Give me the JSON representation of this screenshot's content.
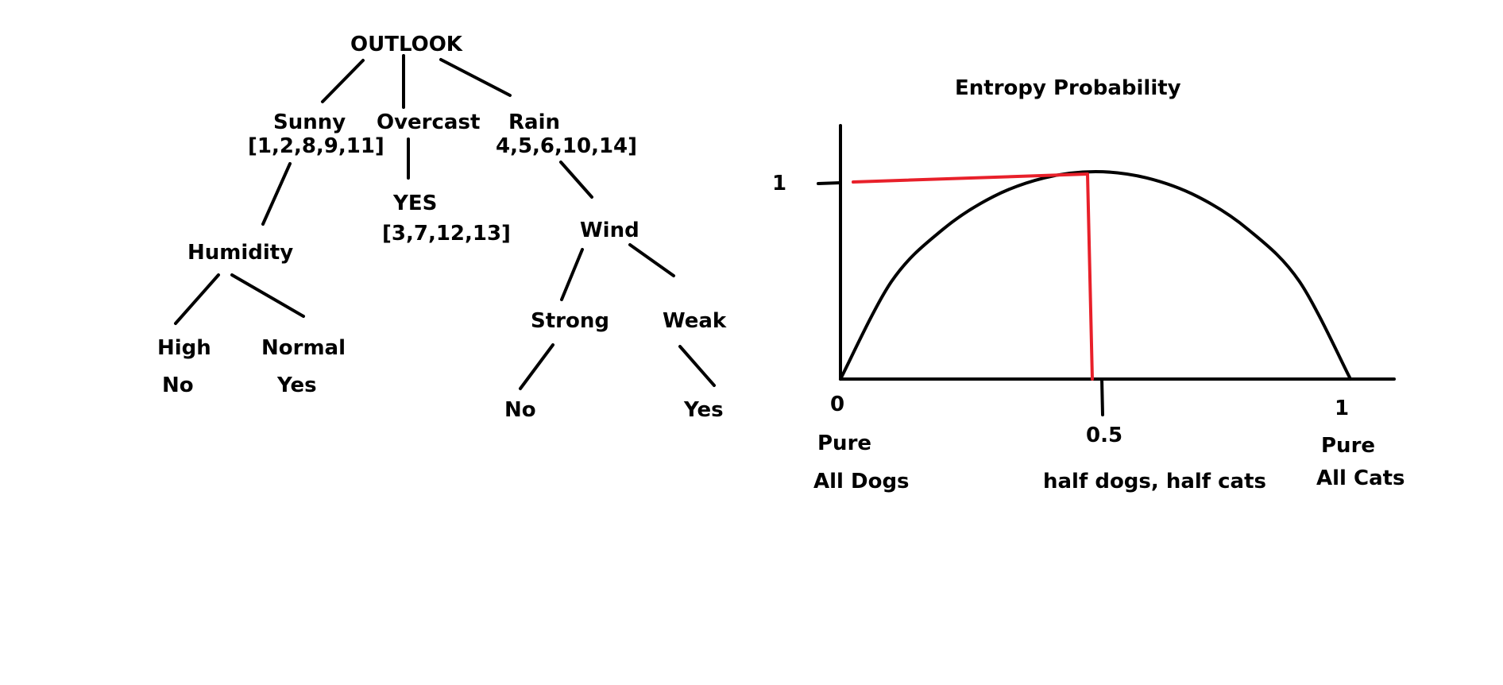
{
  "tree": {
    "root": "OUTLOOK",
    "sunny": {
      "label": "Sunny",
      "ids": "[1,2,8,9,11]"
    },
    "overcast": {
      "label": "Overcast",
      "result": "YES",
      "ids": "[3,7,12,13]"
    },
    "rain": {
      "label": "Rain",
      "ids": "4,5,6,10,14]"
    },
    "humidity": {
      "label": "Humidity",
      "high": {
        "label": "High",
        "result": "No"
      },
      "normal": {
        "label": "Normal",
        "result": "Yes"
      }
    },
    "wind": {
      "label": "Wind",
      "strong": {
        "label": "Strong",
        "result": "No"
      },
      "weak": {
        "label": "Weak",
        "result": "Yes"
      }
    }
  },
  "entropy_chart": {
    "title": "Entropy Probability",
    "y_tick": "1",
    "x_ticks": {
      "zero": "0",
      "half": "0.5",
      "one": "1"
    },
    "x_notes": {
      "left_line1": "Pure",
      "left_line2": "All Dogs",
      "middle": "half dogs, half cats",
      "right_line1": "Pure",
      "right_line2": "All Cats"
    },
    "curve_color": "#000000",
    "guide_color": "#e8202a"
  },
  "chart_data": {
    "type": "line",
    "title": "Entropy Probability",
    "xlabel": "",
    "ylabel": "",
    "xlim": [
      0,
      1
    ],
    "ylim": [
      0,
      1
    ],
    "x": [
      0,
      0.1,
      0.2,
      0.3,
      0.4,
      0.5,
      0.6,
      0.7,
      0.8,
      0.9,
      1
    ],
    "series": [
      {
        "values": [
          0,
          0.47,
          0.72,
          0.88,
          0.97,
          1,
          0.97,
          0.88,
          0.72,
          0.47,
          0
        ]
      }
    ],
    "x_tick_labels": [
      "0",
      "0.5",
      "1"
    ],
    "y_tick_labels": [
      "1"
    ],
    "annotations": [
      "Pure",
      "All Dogs",
      "half dogs, half cats",
      "Pure",
      "All Cats"
    ],
    "grid": false
  }
}
